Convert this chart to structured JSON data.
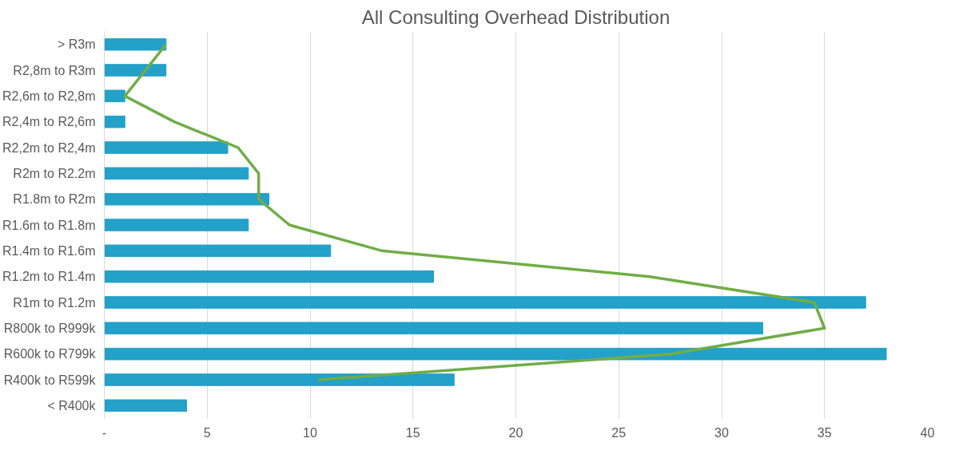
{
  "chart_data": {
    "type": "bar",
    "orientation": "horizontal",
    "title": "All Consulting Overhead Distribution",
    "categories": [
      "> R3m",
      "R2,8m to R3m",
      "R2,6m to R2,8m",
      "R2,4m to R2,6m",
      "R2,2m to R2,4m",
      "R2m to R2.2m",
      "R1.8m to R2m",
      "R1.6m to R1.8m",
      "R1.4m to R1.6m",
      "R1.2m to R1.4m",
      "R1m to R1.2m",
      "R800k to R999k",
      "R600k to R799k",
      "R400k to R599k",
      "< R400k"
    ],
    "series": [
      {
        "color": "#23a1c8",
        "values": [
          3,
          3,
          1,
          1,
          6,
          7,
          8,
          7,
          11,
          16,
          37,
          32,
          38,
          17,
          4
        ]
      },
      {
        "type": "line",
        "color": "#70ad47",
        "values": [
          3,
          2,
          1,
          3.4,
          6.5,
          7.5,
          7.5,
          9,
          13.5,
          26.5,
          34.5,
          35,
          27.5,
          10.4,
          null
        ]
      }
    ],
    "xlim": [
      0,
      40
    ],
    "xticks": [
      {
        "value": 0,
        "label": "-"
      },
      5,
      10,
      15,
      20,
      25,
      30,
      35,
      40
    ],
    "grid": "x"
  }
}
